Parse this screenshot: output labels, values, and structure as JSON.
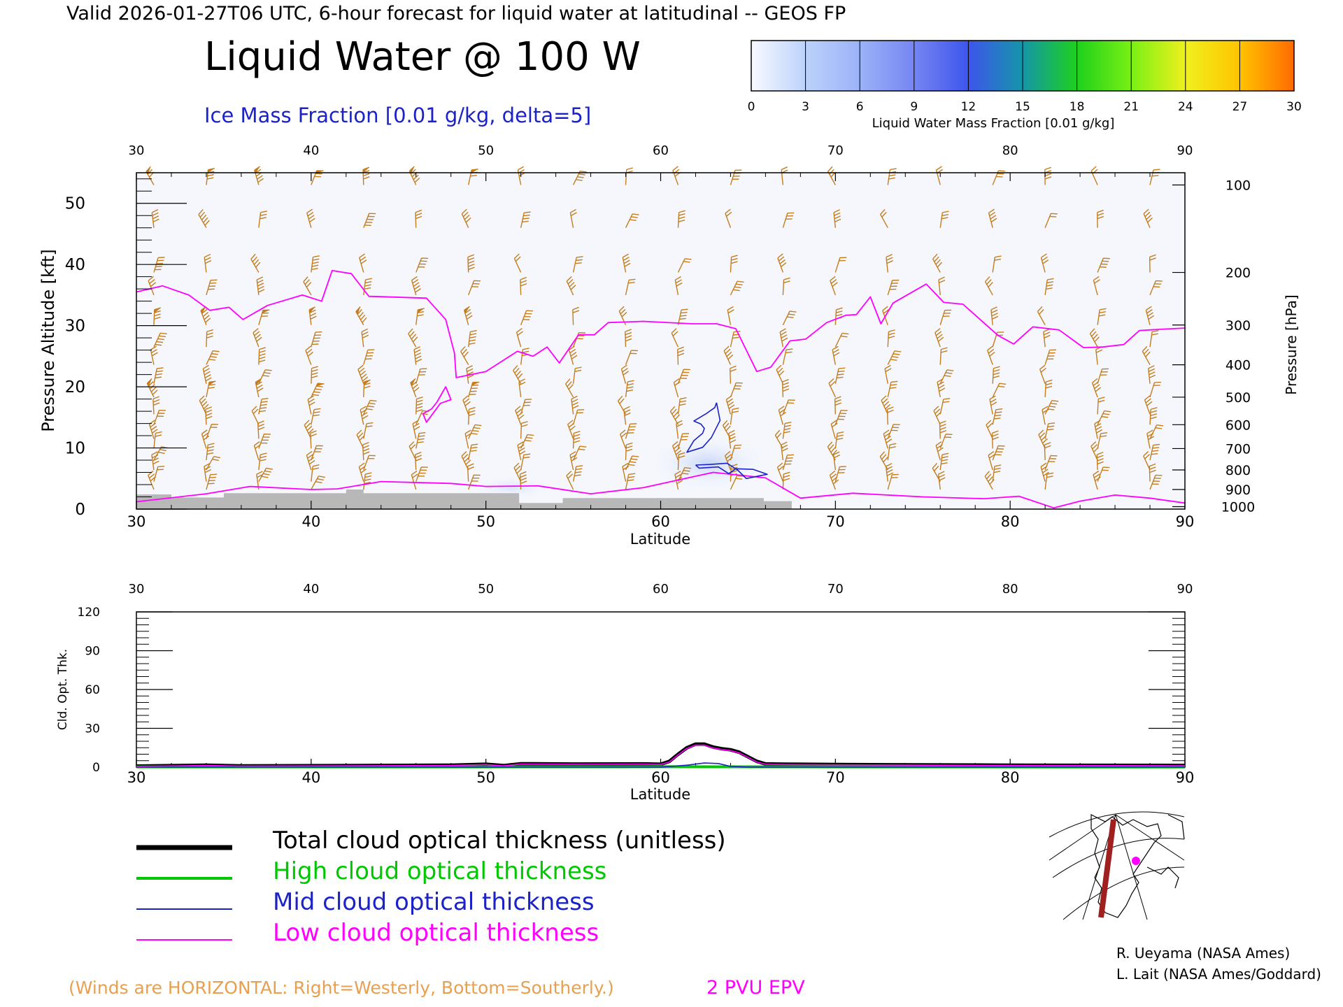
{
  "header": {
    "valid_line": "Valid 2026-01-27T06 UTC, 6-hour forecast for liquid water at latitudinal -- GEOS FP",
    "title": "Liquid Water @ 100 W",
    "subtitle": "Ice Mass Fraction [0.01 g/kg, delta=5]"
  },
  "colorbar": {
    "label": "Liquid Water Mass Fraction [0.01 g/kg]",
    "ticks": [
      "0",
      "3",
      "6",
      "9",
      "12",
      "15",
      "18",
      "21",
      "24",
      "27",
      "30"
    ],
    "colors": [
      "#f8f9ff",
      "#bcd2fb",
      "#9bb2f8",
      "#7685f2",
      "#3d55ec",
      "#1496a8",
      "#1ed01c",
      "#7af014",
      "#f0f01e",
      "#ffc400",
      "#ff6a00"
    ]
  },
  "colors": {
    "axis": "#000000",
    "wind_barb": "#c47d1c",
    "tropopause": "#ff00ff",
    "ice_contour": "#1a22c8",
    "terrain": "#b8b8b8",
    "total": "#000000",
    "high": "#00c800",
    "mid": "#1a22c8",
    "low": "#ff00ff"
  },
  "chart_data": [
    {
      "type": "line",
      "name": "cross-section",
      "xlabel": "Latitude",
      "ylabel": "Pressure Altitude [kft]",
      "y2label": "Pressure [hPa]",
      "xlim": [
        30,
        90
      ],
      "ylim": [
        0,
        55
      ],
      "x_ticks": [
        "30",
        "40",
        "50",
        "60",
        "70",
        "80",
        "90"
      ],
      "y_ticks": [
        "0",
        "10",
        "20",
        "30",
        "40",
        "50"
      ],
      "pressure_ticks": [
        {
          "label": "100",
          "kft": 53.0
        },
        {
          "label": "200",
          "kft": 38.7
        },
        {
          "label": "300",
          "kft": 30.1
        },
        {
          "label": "400",
          "kft": 23.6
        },
        {
          "label": "500",
          "kft": 18.3
        },
        {
          "label": "600",
          "kft": 13.8
        },
        {
          "label": "700",
          "kft": 9.9
        },
        {
          "label": "800",
          "kft": 6.4
        },
        {
          "label": "900",
          "kft": 3.2
        },
        {
          "label": "1000",
          "kft": 0.4
        }
      ],
      "series": [
        {
          "name": "2 PVU EPV",
          "x": [
            30,
            31.5,
            33,
            34.2,
            35.3,
            36.1,
            37.5,
            39.5,
            40.6,
            41.2,
            42.3,
            43.3,
            46.6,
            47.7,
            48.2,
            48.3,
            50,
            51.8,
            52.7,
            53.5,
            54.2,
            55.3,
            56.2,
            57,
            59,
            61.8,
            63.2,
            64.3,
            65.5,
            66.3,
            67.4,
            68.3,
            69.5,
            70.6,
            71.2,
            72,
            72.6,
            73.3,
            75.2,
            76.2,
            77.3,
            79.3,
            80.2,
            81.3,
            82.8,
            84.2,
            85.3,
            86.5,
            87.4,
            88.6,
            90
          ],
          "y": [
            35.5,
            36.5,
            35,
            32.5,
            33,
            31,
            33.3,
            35,
            34,
            39,
            38.5,
            34.8,
            34.5,
            31,
            25.5,
            21.5,
            22.5,
            25.8,
            25,
            26.5,
            23.9,
            28.5,
            28.5,
            30.5,
            30.7,
            30.3,
            30.3,
            29.5,
            22.5,
            23.2,
            27.5,
            27.8,
            30.5,
            31.7,
            31.8,
            34.7,
            30.3,
            33.7,
            36.8,
            33.8,
            33.5,
            28.4,
            27,
            29.8,
            29.3,
            26.4,
            26.5,
            26.9,
            29.2,
            29.4,
            29.6
          ]
        },
        {
          "name": "2 PVU EPV lower fold",
          "x": [
            46.4,
            46.9,
            47.2,
            47.7,
            48,
            47.4,
            46.6,
            46.4
          ],
          "y": [
            15.6,
            16.4,
            17.5,
            20,
            17.9,
            17.3,
            14.2,
            15.6
          ]
        },
        {
          "name": "2 PVU EPV low level",
          "x": [
            30,
            34,
            36.5,
            40,
            41.5,
            44,
            48,
            50,
            53,
            56,
            59,
            63,
            66,
            68,
            71,
            75,
            78.5,
            80.5,
            82.5,
            84,
            86,
            88,
            90
          ],
          "y": [
            1.2,
            2.5,
            3.7,
            3.2,
            3.3,
            4.5,
            4.2,
            3.7,
            3.8,
            2.5,
            3.5,
            6.0,
            5.1,
            1.8,
            2.6,
            2.0,
            1.7,
            2.1,
            0.2,
            1.3,
            2.3,
            1.8,
            1.0
          ]
        },
        {
          "name": "ice mass fraction contour",
          "x": [
            63.2,
            63.4,
            62.9,
            62.4,
            61.5,
            61.9,
            62.4,
            62.5,
            62.3,
            61.9,
            62.6,
            63.1,
            63.2
          ],
          "y": [
            17.4,
            14.5,
            11.7,
            10.1,
            9.3,
            11.2,
            12.4,
            13.2,
            13.9,
            14.4,
            15.6,
            16.6,
            17.4
          ]
        },
        {
          "name": "ice mass fraction contour lower",
          "x": [
            62,
            62.8,
            63.8,
            64.4,
            64.9,
            66.1,
            65.3,
            64.3,
            63.9,
            63.3,
            62.2,
            62
          ],
          "y": [
            7.2,
            7.3,
            7.5,
            6.4,
            5.0,
            5.7,
            6.5,
            6.6,
            5.8,
            6.9,
            6.7,
            7.2
          ]
        }
      ],
      "terrain": {
        "x": [
          30,
          32,
          34,
          35,
          42,
          43,
          51.8,
          51.9,
          54.3,
          54.4,
          64,
          65.9,
          67.4,
          67.5
        ],
        "y": [
          2.4,
          1.9,
          1.9,
          2.6,
          3.2,
          2.6,
          2.6,
          1.0,
          1.0,
          1.8,
          1.8,
          1.3,
          1.3,
          0.0
        ]
      }
    },
    {
      "type": "line",
      "name": "cloud-optical-thickness",
      "xlabel": "Latitude",
      "ylabel": "Cld. Opt. Thk.",
      "xlim": [
        30,
        90
      ],
      "ylim": [
        0,
        120
      ],
      "x_ticks": [
        "30",
        "40",
        "50",
        "60",
        "70",
        "80",
        "90"
      ],
      "y_ticks": [
        "0",
        "30",
        "60",
        "90",
        "120"
      ],
      "series": [
        {
          "name": "Total cloud optical thickness (unitless)",
          "x": [
            30,
            34,
            36,
            48,
            50,
            51,
            52,
            55,
            59,
            60,
            60.5,
            61,
            61.5,
            62,
            62.5,
            63,
            63.5,
            64,
            64.5,
            65,
            65.5,
            66,
            67,
            70,
            80,
            90
          ],
          "y": [
            0.8,
            1.5,
            0.9,
            1.5,
            2.2,
            1.2,
            2.6,
            2.4,
            2.5,
            2.2,
            4.5,
            10,
            15,
            17.8,
            17.8,
            15.5,
            14.2,
            13.4,
            11.5,
            8,
            4.5,
            2.5,
            2.3,
            2,
            1.5,
            1.3
          ]
        },
        {
          "name": "High cloud optical thickness",
          "x": [
            30,
            50,
            60,
            70,
            90
          ],
          "y": [
            0.2,
            0.2,
            0.3,
            0.2,
            0.1
          ]
        },
        {
          "name": "Mid cloud optical thickness",
          "x": [
            30,
            60,
            61.5,
            62.5,
            63.3,
            64,
            65,
            90
          ],
          "y": [
            0,
            0,
            1.5,
            3.2,
            2.8,
            0.6,
            0,
            0
          ]
        },
        {
          "name": "Low cloud optical thickness",
          "x": [
            30,
            34,
            36,
            48,
            50,
            51,
            52,
            55,
            59,
            60,
            60.5,
            61,
            61.5,
            62,
            62.5,
            63,
            63.5,
            64,
            64.5,
            65,
            65.5,
            66,
            67,
            70,
            80,
            90
          ],
          "y": [
            0.6,
            1.3,
            0.8,
            1.3,
            2.0,
            1.0,
            2.4,
            2.2,
            2.3,
            2.0,
            4.0,
            9.5,
            14.5,
            17.0,
            17.0,
            14.8,
            13.6,
            12.8,
            11.0,
            7.5,
            4.0,
            2.2,
            2.0,
            1.8,
            1.3,
            1.1
          ]
        }
      ]
    }
  ],
  "legend": {
    "items": [
      {
        "label": "Total cloud optical thickness (unitless)",
        "color": "#000000"
      },
      {
        "label": "High cloud optical thickness",
        "color": "#00c800"
      },
      {
        "label": "Mid cloud optical thickness",
        "color": "#1a22c8"
      },
      {
        "label": "Low cloud optical thickness",
        "color": "#ff00ff"
      }
    ]
  },
  "footer": {
    "winds_note": "(Winds are HORIZONTAL: Right=Westerly, Bottom=Southerly.)",
    "epv_label": "2 PVU EPV",
    "credit1": "R. Ueyama (NASA Ames)",
    "credit2": "L. Lait (NASA Ames/Goddard)"
  }
}
